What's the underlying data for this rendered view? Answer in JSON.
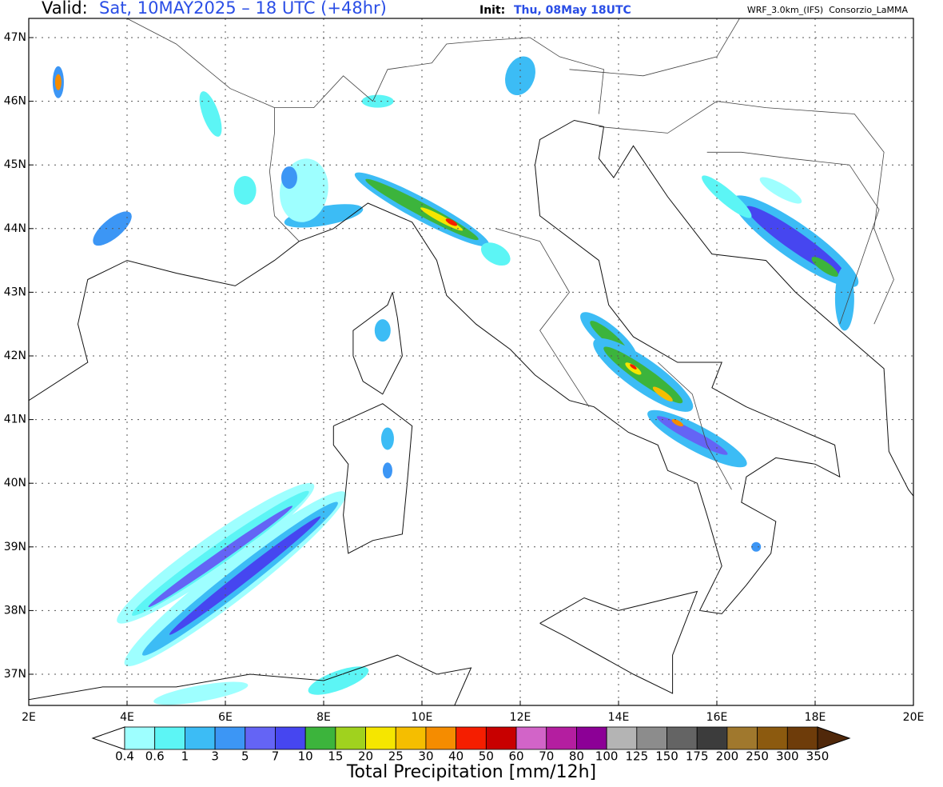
{
  "header": {
    "valid_label": "Valid:",
    "valid_time": "Sat, 10MAY2025 – 18 UTC (+48hr)",
    "init_label": "Init:",
    "init_time": "Thu, 08May 18UTC",
    "model": "WRF_3.0km_(IFS)  Consorzio_LaMMA"
  },
  "map": {
    "lat_labels": [
      "47N",
      "46N",
      "45N",
      "44N",
      "43N",
      "42N",
      "41N",
      "40N",
      "39N",
      "38N",
      "37N"
    ],
    "lon_labels": [
      "2E",
      "4E",
      "6E",
      "8E",
      "10E",
      "12E",
      "14E",
      "16E",
      "18E",
      "20E"
    ]
  },
  "colorbar": {
    "title": "Total Precipitation [mm/12h]",
    "levels": [
      0.4,
      0.6,
      1,
      3,
      5,
      7,
      10,
      15,
      20,
      25,
      30,
      40,
      50,
      60,
      70,
      80,
      100,
      125,
      150,
      175,
      200,
      250,
      300,
      350
    ],
    "colors": [
      "#ffffff",
      "#9effff",
      "#5cf5f5",
      "#3cbcf5",
      "#3c96f5",
      "#6464f5",
      "#4646f0",
      "#3cb43c",
      "#a0d21e",
      "#f5e600",
      "#f5be00",
      "#f58c00",
      "#f51e00",
      "#c80000",
      "#d264c8",
      "#b41ea0",
      "#8c0096",
      "#b4b4b4",
      "#8c8c8c",
      "#646464",
      "#3c3c3c",
      "#a0782d",
      "#8c5a0f",
      "#6e3c0a",
      "#50280a"
    ]
  }
}
